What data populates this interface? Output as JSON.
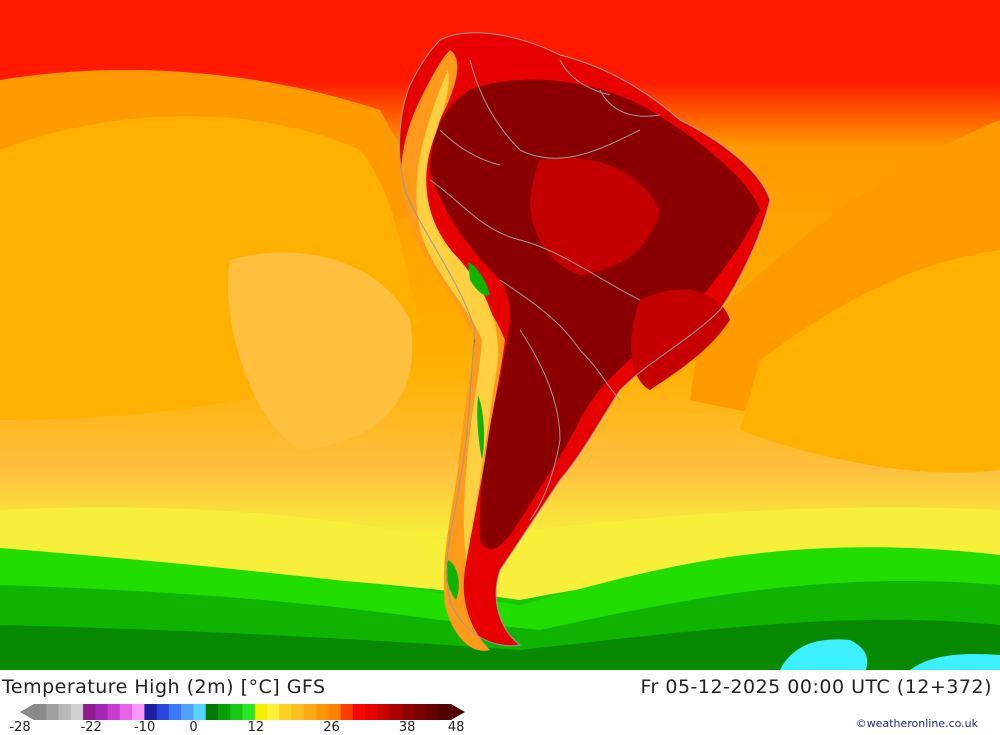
{
  "map": {
    "region": "South America",
    "colors": {
      "ocean_north": "#ff1a00",
      "ocean_orange": "#ff9a00",
      "ocean_amber": "#ffb000",
      "ocean_light": "#ffc040",
      "yellow": "#f7ef3a",
      "green_light": "#22dd00",
      "green": "#0fb400",
      "green_dark": "#078a00",
      "cyan": "#3cf0ff",
      "land_hot": "#8a0000",
      "land_warm": "#c40000",
      "land_red": "#e60000",
      "andes_orange": "#ff9a1a",
      "andes_yellow": "#ffd040",
      "border": "#9a9a9a"
    }
  },
  "footer": {
    "title": "Temperature High (2m) [°C] GFS",
    "datetime": "Fr 05-12-2025 00:00 UTC (12+372)",
    "credit": "©weatheronline.co.uk"
  },
  "colorbar": {
    "colors": [
      "#8a8a8a",
      "#a0a0a0",
      "#b8b8b8",
      "#d0d0d0",
      "#8c1e8c",
      "#a028b4",
      "#c83cd2",
      "#e664e6",
      "#ff96ff",
      "#1e1ea0",
      "#2846dc",
      "#3c78ff",
      "#50a0ff",
      "#5ad2ff",
      "#007800",
      "#00a000",
      "#14c814",
      "#28e628",
      "#f0f000",
      "#fff03c",
      "#ffd228",
      "#ffbe1e",
      "#ffaa14",
      "#ff960a",
      "#ff8200",
      "#ff3c00",
      "#ff0000",
      "#e60000",
      "#c80000",
      "#aa0000",
      "#8c0000",
      "#780000",
      "#640000",
      "#500000"
    ],
    "ticks": [
      {
        "label": "-28",
        "frac": 0.0
      },
      {
        "label": "-22",
        "frac": 0.16
      },
      {
        "label": "-10",
        "frac": 0.28
      },
      {
        "label": "0",
        "frac": 0.39
      },
      {
        "label": "12",
        "frac": 0.53
      },
      {
        "label": "26",
        "frac": 0.7
      },
      {
        "label": "38",
        "frac": 0.87
      },
      {
        "label": "48",
        "frac": 0.98
      }
    ]
  }
}
